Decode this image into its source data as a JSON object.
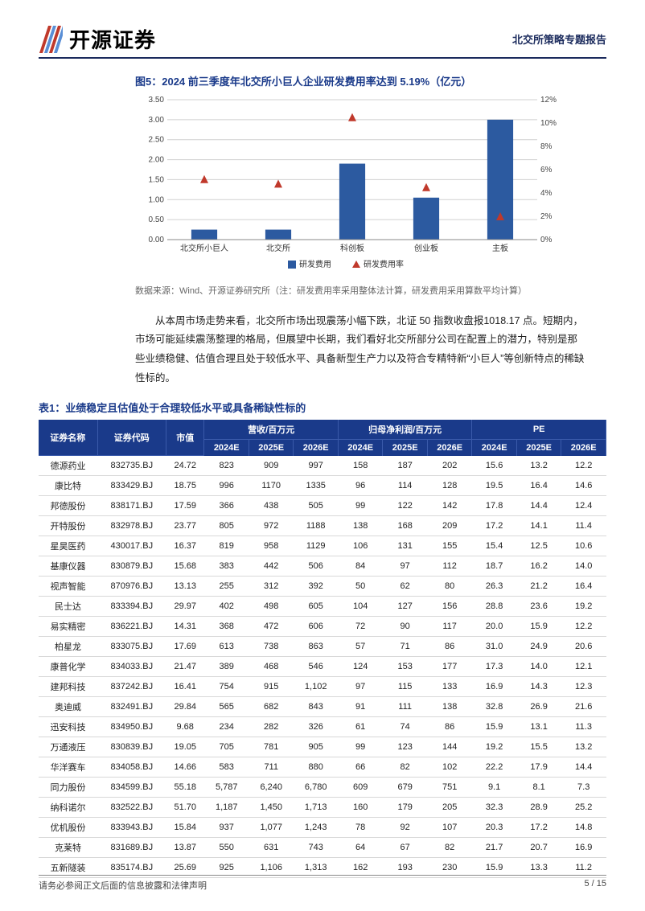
{
  "header": {
    "logo_text": "开源证券",
    "doc_subtitle": "北交所策略专题报告",
    "logo_stripes": [
      "#c0392b",
      "#5a8fd6",
      "#c0392b",
      "#5a8fd6"
    ]
  },
  "figure5": {
    "title": "图5：2024 前三季度年北交所小巨人企业研发费用率达到 5.19%（亿元）",
    "type": "bar+marker",
    "categories": [
      "北交所小巨人",
      "北交所",
      "科创板",
      "创业板",
      "主板"
    ],
    "bar_values": [
      0.25,
      0.25,
      1.9,
      1.05,
      3.0
    ],
    "bar_color": "#2c5aa0",
    "bar_width": 0.35,
    "marker_values": [
      5.19,
      4.8,
      10.5,
      4.5,
      2.0
    ],
    "marker_color": "#c0392b",
    "marker_shape": "triangle",
    "left_axis": {
      "min": 0,
      "max": 3.5,
      "tick_step": 0.5,
      "ticks": [
        "0.00",
        "0.50",
        "1.00",
        "1.50",
        "2.00",
        "2.50",
        "3.00",
        "3.50"
      ]
    },
    "right_axis": {
      "min": 0,
      "max": 12,
      "tick_step": 2,
      "ticks": [
        "0%",
        "2%",
        "4%",
        "6%",
        "8%",
        "10%",
        "12%"
      ]
    },
    "legend": {
      "bar": "研发费用",
      "marker": "研发费用率"
    },
    "grid_color": "#d0d0d0",
    "background_color": "#ffffff",
    "label_fontsize": 10,
    "source": "数据来源：Wind、开源证券研究所（注：研发费用率采用整体法计算，研发费用采用算数平均计算）"
  },
  "paragraph": "从本周市场走势来看，北交所市场出现震荡小幅下跌，北证 50 指数收盘报1018.17 点。短期内，市场可能延续震荡整理的格局，但展望中长期，我们看好北交所部分公司在配置上的潜力，特别是那些业绩稳健、估值合理且处于较低水平、具备新型生产力以及符合专精特新“小巨人”等创新特点的稀缺性标的。",
  "table1": {
    "title": "表1：业绩稳定且估值处于合理较低水平或具备稀缺性标的",
    "header_bg": "#1a3a8a",
    "header_fg": "#ffffff",
    "groups": {
      "name": "证券名称",
      "code": "证券代码",
      "mktcap": "市值",
      "revenue": "营收/百万元",
      "netprofit": "归母净利润/百万元",
      "pe": "PE"
    },
    "years": [
      "2024E",
      "2025E",
      "2026E"
    ],
    "rows": [
      {
        "name": "德源药业",
        "code": "832735.BJ",
        "mktcap": "24.72",
        "rev": [
          "823",
          "909",
          "997"
        ],
        "np": [
          "158",
          "187",
          "202"
        ],
        "pe": [
          "15.6",
          "13.2",
          "12.2"
        ]
      },
      {
        "name": "康比特",
        "code": "833429.BJ",
        "mktcap": "18.75",
        "rev": [
          "996",
          "1170",
          "1335"
        ],
        "np": [
          "96",
          "114",
          "128"
        ],
        "pe": [
          "19.5",
          "16.4",
          "14.6"
        ]
      },
      {
        "name": "邦德股份",
        "code": "838171.BJ",
        "mktcap": "17.59",
        "rev": [
          "366",
          "438",
          "505"
        ],
        "np": [
          "99",
          "122",
          "142"
        ],
        "pe": [
          "17.8",
          "14.4",
          "12.4"
        ]
      },
      {
        "name": "开特股份",
        "code": "832978.BJ",
        "mktcap": "23.77",
        "rev": [
          "805",
          "972",
          "1188"
        ],
        "np": [
          "138",
          "168",
          "209"
        ],
        "pe": [
          "17.2",
          "14.1",
          "11.4"
        ]
      },
      {
        "name": "星昊医药",
        "code": "430017.BJ",
        "mktcap": "16.37",
        "rev": [
          "819",
          "958",
          "1129"
        ],
        "np": [
          "106",
          "131",
          "155"
        ],
        "pe": [
          "15.4",
          "12.5",
          "10.6"
        ]
      },
      {
        "name": "基康仪器",
        "code": "830879.BJ",
        "mktcap": "15.68",
        "rev": [
          "383",
          "442",
          "506"
        ],
        "np": [
          "84",
          "97",
          "112"
        ],
        "pe": [
          "18.7",
          "16.2",
          "14.0"
        ]
      },
      {
        "name": "视声智能",
        "code": "870976.BJ",
        "mktcap": "13.13",
        "rev": [
          "255",
          "312",
          "392"
        ],
        "np": [
          "50",
          "62",
          "80"
        ],
        "pe": [
          "26.3",
          "21.2",
          "16.4"
        ]
      },
      {
        "name": "民士达",
        "code": "833394.BJ",
        "mktcap": "29.97",
        "rev": [
          "402",
          "498",
          "605"
        ],
        "np": [
          "104",
          "127",
          "156"
        ],
        "pe": [
          "28.8",
          "23.6",
          "19.2"
        ]
      },
      {
        "name": "易实精密",
        "code": "836221.BJ",
        "mktcap": "14.31",
        "rev": [
          "368",
          "472",
          "606"
        ],
        "np": [
          "72",
          "90",
          "117"
        ],
        "pe": [
          "20.0",
          "15.9",
          "12.2"
        ]
      },
      {
        "name": "柏星龙",
        "code": "833075.BJ",
        "mktcap": "17.69",
        "rev": [
          "613",
          "738",
          "863"
        ],
        "np": [
          "57",
          "71",
          "86"
        ],
        "pe": [
          "31.0",
          "24.9",
          "20.6"
        ]
      },
      {
        "name": "康普化学",
        "code": "834033.BJ",
        "mktcap": "21.47",
        "rev": [
          "389",
          "468",
          "546"
        ],
        "np": [
          "124",
          "153",
          "177"
        ],
        "pe": [
          "17.3",
          "14.0",
          "12.1"
        ]
      },
      {
        "name": "建邦科技",
        "code": "837242.BJ",
        "mktcap": "16.41",
        "rev": [
          "754",
          "915",
          "1,102"
        ],
        "np": [
          "97",
          "115",
          "133"
        ],
        "pe": [
          "16.9",
          "14.3",
          "12.3"
        ]
      },
      {
        "name": "奥迪威",
        "code": "832491.BJ",
        "mktcap": "29.84",
        "rev": [
          "565",
          "682",
          "843"
        ],
        "np": [
          "91",
          "111",
          "138"
        ],
        "pe": [
          "32.8",
          "26.9",
          "21.6"
        ]
      },
      {
        "name": "迅安科技",
        "code": "834950.BJ",
        "mktcap": "9.68",
        "rev": [
          "234",
          "282",
          "326"
        ],
        "np": [
          "61",
          "74",
          "86"
        ],
        "pe": [
          "15.9",
          "13.1",
          "11.3"
        ]
      },
      {
        "name": "万通液压",
        "code": "830839.BJ",
        "mktcap": "19.05",
        "rev": [
          "705",
          "781",
          "905"
        ],
        "np": [
          "99",
          "123",
          "144"
        ],
        "pe": [
          "19.2",
          "15.5",
          "13.2"
        ]
      },
      {
        "name": "华洋赛车",
        "code": "834058.BJ",
        "mktcap": "14.66",
        "rev": [
          "583",
          "711",
          "880"
        ],
        "np": [
          "66",
          "82",
          "102"
        ],
        "pe": [
          "22.2",
          "17.9",
          "14.4"
        ]
      },
      {
        "name": "同力股份",
        "code": "834599.BJ",
        "mktcap": "55.18",
        "rev": [
          "5,787",
          "6,240",
          "6,780"
        ],
        "np": [
          "609",
          "679",
          "751"
        ],
        "pe": [
          "9.1",
          "8.1",
          "7.3"
        ]
      },
      {
        "name": "纳科诺尔",
        "code": "832522.BJ",
        "mktcap": "51.70",
        "rev": [
          "1,187",
          "1,450",
          "1,713"
        ],
        "np": [
          "160",
          "179",
          "205"
        ],
        "pe": [
          "32.3",
          "28.9",
          "25.2"
        ]
      },
      {
        "name": "优机股份",
        "code": "833943.BJ",
        "mktcap": "15.84",
        "rev": [
          "937",
          "1,077",
          "1,243"
        ],
        "np": [
          "78",
          "92",
          "107"
        ],
        "pe": [
          "20.3",
          "17.2",
          "14.8"
        ]
      },
      {
        "name": "克莱特",
        "code": "831689.BJ",
        "mktcap": "13.87",
        "rev": [
          "550",
          "631",
          "743"
        ],
        "np": [
          "64",
          "67",
          "82"
        ],
        "pe": [
          "21.7",
          "20.7",
          "16.9"
        ]
      },
      {
        "name": "五新隧装",
        "code": "835174.BJ",
        "mktcap": "25.69",
        "rev": [
          "925",
          "1,106",
          "1,313"
        ],
        "np": [
          "162",
          "193",
          "230"
        ],
        "pe": [
          "15.9",
          "13.3",
          "11.2"
        ]
      }
    ]
  },
  "footer": {
    "left": "请务必参阅正文后面的信息披露和法律声明",
    "right": "5 / 15"
  }
}
